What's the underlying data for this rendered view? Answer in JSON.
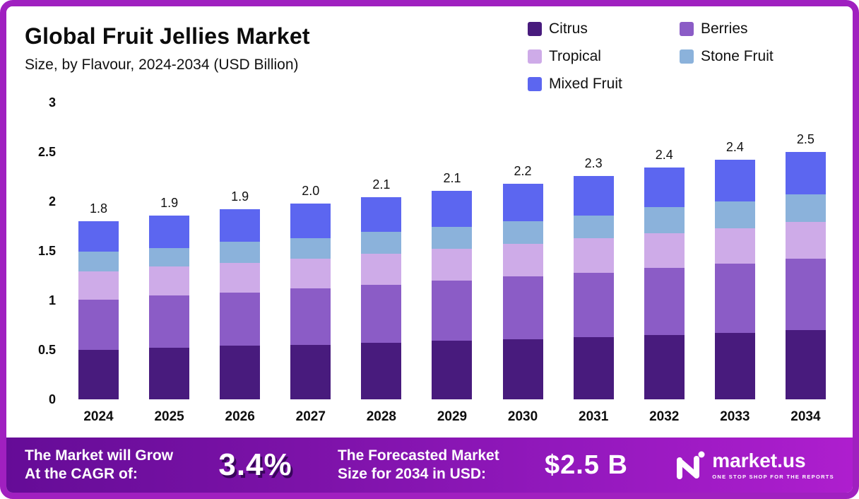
{
  "header": {
    "title": "Global Fruit Jellies Market",
    "subtitle": "Size, by Flavour, 2024-2034 (USD Billion)"
  },
  "legend": [
    {
      "label": "Citrus",
      "color": "#481B7D"
    },
    {
      "label": "Berries",
      "color": "#8B5CC6"
    },
    {
      "label": "Tropical",
      "color": "#CEABE8"
    },
    {
      "label": "Stone Fruit",
      "color": "#8BB2DB"
    },
    {
      "label": "Mixed Fruit",
      "color": "#5C66F0"
    }
  ],
  "chart_data": {
    "type": "bar",
    "stacked": true,
    "title": "Global Fruit Jellies Market",
    "subtitle": "Size, by Flavour, 2024-2034 (USD Billion)",
    "xlabel": "",
    "ylabel": "USD Billion",
    "ylim": [
      0,
      3
    ],
    "yticks": [
      3,
      2.5,
      2,
      1.5,
      1,
      0.5,
      0
    ],
    "grid": false,
    "legend_position": "top-right",
    "categories": [
      "2024",
      "2025",
      "2026",
      "2027",
      "2028",
      "2029",
      "2030",
      "2031",
      "2032",
      "2033",
      "2034"
    ],
    "totals": [
      "1.8",
      "1.9",
      "1.9",
      "2.0",
      "2.1",
      "2.1",
      "2.2",
      "2.3",
      "2.4",
      "2.4",
      "2.5"
    ],
    "series": [
      {
        "name": "Citrus",
        "color": "#481B7D",
        "values": [
          0.5,
          0.52,
          0.54,
          0.55,
          0.57,
          0.59,
          0.61,
          0.63,
          0.65,
          0.67,
          0.7
        ]
      },
      {
        "name": "Berries",
        "color": "#8B5CC6",
        "values": [
          0.51,
          0.53,
          0.54,
          0.57,
          0.59,
          0.61,
          0.63,
          0.65,
          0.68,
          0.7,
          0.72
        ]
      },
      {
        "name": "Tropical",
        "color": "#CEABE8",
        "values": [
          0.28,
          0.29,
          0.3,
          0.3,
          0.31,
          0.32,
          0.33,
          0.35,
          0.35,
          0.36,
          0.37
        ]
      },
      {
        "name": "Stone Fruit",
        "color": "#8BB2DB",
        "values": [
          0.2,
          0.19,
          0.21,
          0.21,
          0.22,
          0.22,
          0.23,
          0.23,
          0.26,
          0.27,
          0.28
        ]
      },
      {
        "name": "Mixed Fruit",
        "color": "#5C66F0",
        "values": [
          0.31,
          0.33,
          0.33,
          0.35,
          0.35,
          0.37,
          0.38,
          0.4,
          0.4,
          0.42,
          0.43
        ]
      }
    ]
  },
  "banner": {
    "cagr_label_line1": "The Market will Grow",
    "cagr_label_line2": "At the CAGR of:",
    "cagr_value": "3.4%",
    "forecast_label_line1": "The Forecasted Market",
    "forecast_label_line2": "Size for 2034 in USD:",
    "forecast_value": "$2.5 B",
    "logo_text": "market.us",
    "logo_tagline": "ONE STOP SHOP FOR THE REPORTS"
  }
}
